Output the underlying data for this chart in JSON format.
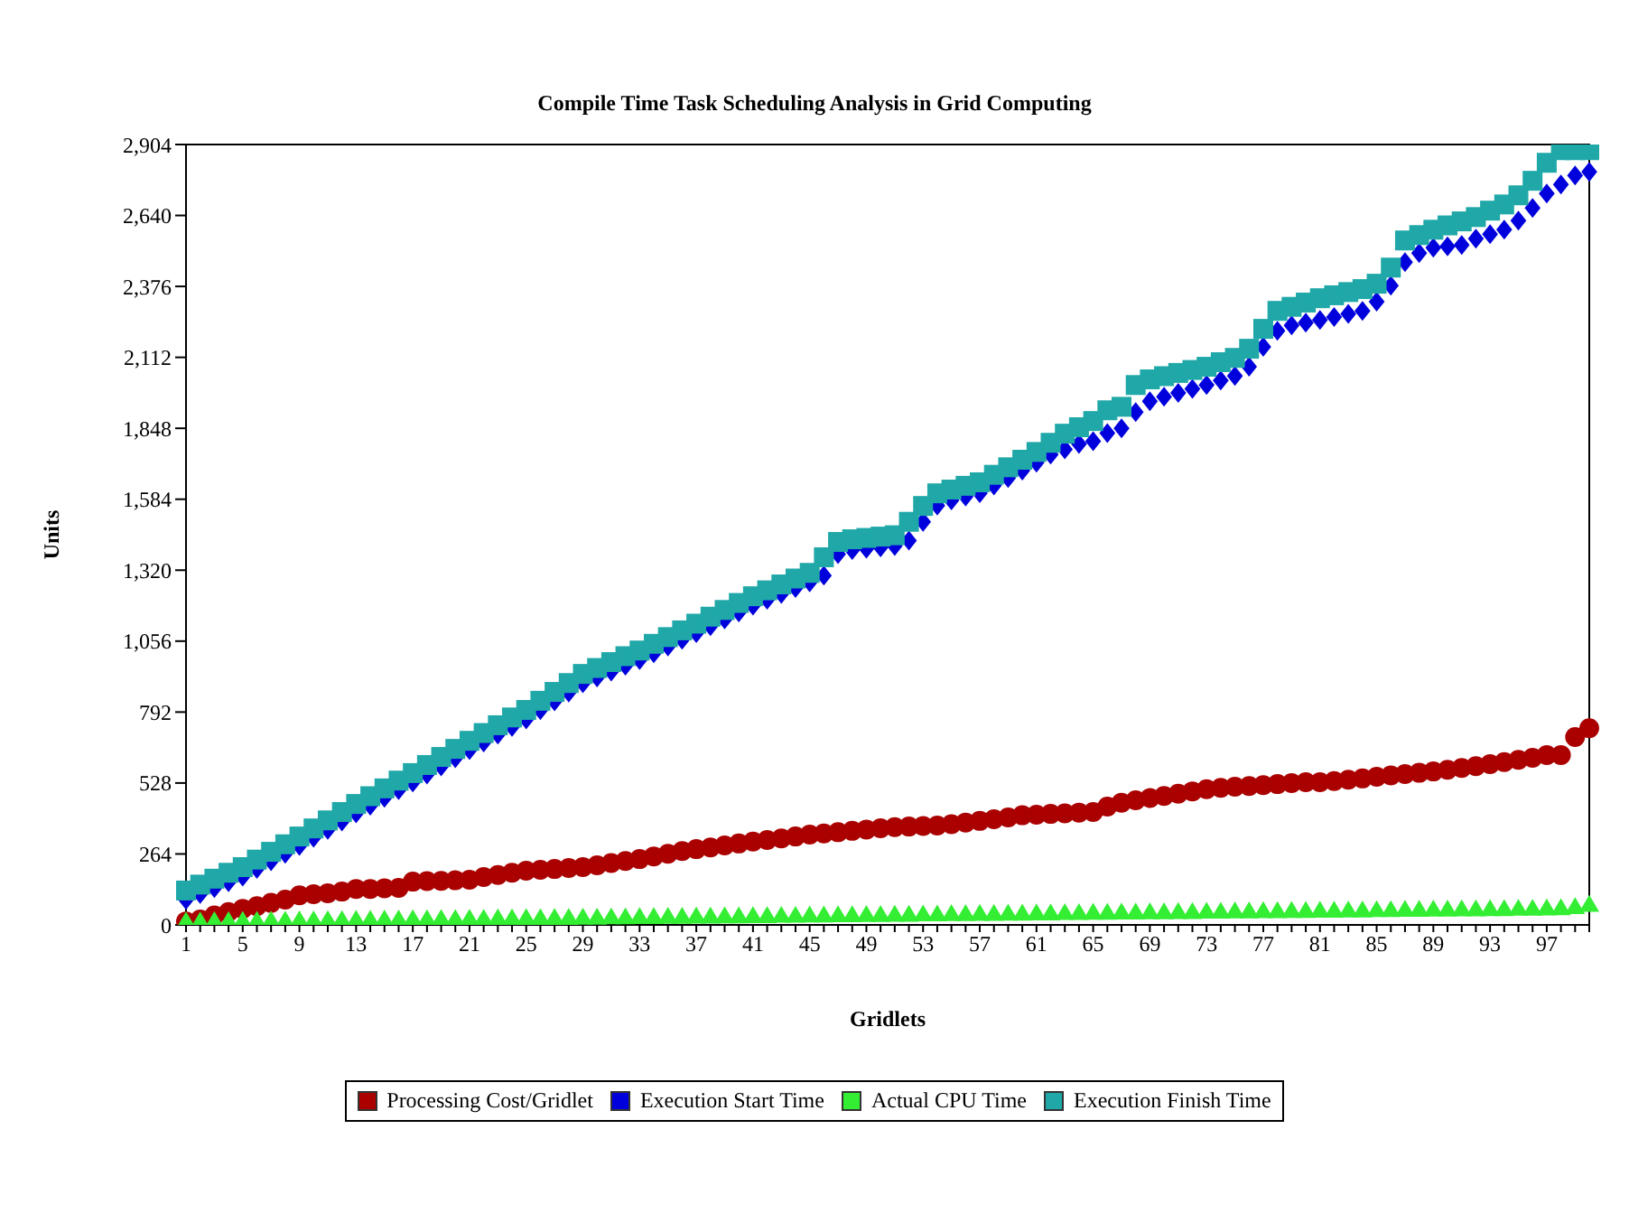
{
  "chart_data": {
    "type": "scatter",
    "title": "Compile Time Task Scheduling Analysis in Grid Computing",
    "xlabel": "Gridlets",
    "ylabel": "Units",
    "categories": [
      "1",
      null,
      null,
      null,
      "5",
      null,
      null,
      null,
      "9",
      null,
      null,
      null,
      "13",
      null,
      null,
      null,
      "17",
      null,
      null,
      null,
      "21",
      null,
      null,
      null,
      "25",
      null,
      null,
      null,
      "29",
      null,
      null,
      null,
      "33",
      null,
      null,
      null,
      "37",
      null,
      null,
      null,
      "41",
      null,
      null,
      null,
      "45",
      null,
      null,
      null,
      "49",
      null,
      null,
      null,
      "53",
      null,
      null,
      null,
      "57",
      null,
      null,
      null,
      "61",
      null,
      null,
      null,
      "65",
      null,
      null,
      null,
      "69",
      null,
      null,
      null,
      "73",
      null,
      null,
      null,
      "77",
      null,
      null,
      null,
      "81",
      null,
      null,
      null,
      "85",
      null,
      null,
      null,
      "89",
      null,
      null,
      null,
      "93",
      null,
      null,
      null,
      "97",
      null,
      null,
      null
    ],
    "ylim": [
      0,
      2904
    ],
    "yticks": [
      0,
      264,
      528,
      792,
      {
        "value": 1056,
        "label": "1,056"
      },
      {
        "value": 1320,
        "label": "1,320"
      },
      {
        "value": 1584,
        "label": "1,584"
      },
      {
        "value": 1848,
        "label": "1,848"
      },
      {
        "value": 2112,
        "label": "2,112"
      },
      {
        "value": 2376,
        "label": "2,376"
      },
      {
        "value": 2640,
        "label": "2,640"
      },
      {
        "value": 2904,
        "label": "2,904"
      }
    ],
    "grid": false,
    "legend": "bottom",
    "series": [
      {
        "name": "Processing Cost/Gridlet",
        "color": "#aa0000",
        "marker": "circle",
        "values": [
          13,
          20,
          35,
          48,
          60,
          70,
          82,
          94,
          110,
          114,
          118,
          124,
          134,
          134,
          136,
          138,
          161,
          163,
          164,
          166,
          168,
          178,
          186,
          194,
          202,
          205,
          208,
          212,
          215,
          222,
          230,
          238,
          245,
          255,
          265,
          275,
          282,
          288,
          296,
          303,
          310,
          316,
          322,
          329,
          336,
          340,
          345,
          350,
          355,
          360,
          364,
          366,
          368,
          370,
          375,
          381,
          387,
          393,
          400,
          408,
          410,
          413,
          415,
          418,
          420,
          440,
          455,
          464,
          472,
          480,
          488,
          497,
          505,
          510,
          514,
          517,
          520,
          524,
          528,
          531,
          531,
          535,
          540,
          545,
          551,
          556,
          561,
          566,
          571,
          577,
          584,
          591,
          598,
          606,
          614,
          622,
          632,
          632,
          699,
          732
        ]
      },
      {
        "name": "Execution Start Time",
        "color": "#0000dd",
        "marker": "diamond",
        "values": [
          93,
          115,
          137,
          159,
          180,
          208,
          237,
          265,
          294,
          324,
          354,
          385,
          415,
          444,
          473,
          502,
          530,
          560,
          590,
          620,
          650,
          679,
          708,
          737,
          765,
          799,
          832,
          865,
          899,
          921,
          943,
          965,
          986,
          1011,
          1036,
          1061,
          1086,
          1112,
          1137,
          1163,
          1188,
          1210,
          1232,
          1254,
          1275,
          1300,
          1380,
          1395,
          1400,
          1405,
          1410,
          1430,
          1500,
          1560,
          1580,
          1594,
          1607,
          1635,
          1663,
          1691,
          1720,
          1750,
          1770,
          1790,
          1800,
          1830,
          1848,
          1908,
          1949,
          1965,
          1980,
          1995,
          2009,
          2026,
          2043,
          2077,
          2151,
          2211,
          2231,
          2241,
          2251,
          2262,
          2274,
          2285,
          2319,
          2379,
          2466,
          2500,
          2520,
          2525,
          2530,
          2554,
          2570,
          2587,
          2621,
          2668,
          2722,
          2755,
          2789,
          2802
        ]
      },
      {
        "name": "Actual CPU Time",
        "color": "#33ee33",
        "marker": "triangle",
        "values": [
          13,
          13,
          14,
          14,
          15,
          15,
          16,
          16,
          17,
          17,
          18,
          18,
          19,
          19,
          20,
          20,
          21,
          21,
          22,
          22,
          23,
          23,
          24,
          24,
          25,
          25,
          26,
          26,
          27,
          27,
          28,
          28,
          29,
          29,
          30,
          30,
          31,
          31,
          32,
          32,
          33,
          33,
          34,
          34,
          35,
          35,
          36,
          36,
          37,
          37,
          38,
          38,
          39,
          39,
          40,
          40,
          41,
          41,
          42,
          42,
          43,
          43,
          44,
          44,
          45,
          45,
          46,
          46,
          47,
          47,
          48,
          48,
          49,
          49,
          50,
          50,
          51,
          51,
          52,
          52,
          53,
          53,
          54,
          54,
          55,
          55,
          56,
          56,
          57,
          57,
          58,
          58,
          59,
          59,
          60,
          60,
          61,
          62,
          66,
          75
        ]
      },
      {
        "name": "Execution Finish Time",
        "color": "#20a8a8",
        "marker": "square",
        "values": [
          128,
          150,
          172,
          194,
          215,
          243,
          272,
          300,
          329,
          359,
          389,
          420,
          450,
          479,
          508,
          537,
          565,
          595,
          625,
          655,
          685,
          714,
          743,
          772,
          800,
          834,
          867,
          900,
          934,
          956,
          978,
          1000,
          1021,
          1046,
          1071,
          1096,
          1121,
          1147,
          1172,
          1198,
          1223,
          1245,
          1267,
          1289,
          1310,
          1368,
          1425,
          1435,
          1440,
          1445,
          1450,
          1500,
          1559,
          1606,
          1620,
          1634,
          1647,
          1675,
          1703,
          1731,
          1760,
          1794,
          1828,
          1852,
          1875,
          1915,
          1928,
          2009,
          2030,
          2042,
          2054,
          2065,
          2077,
          2094,
          2110,
          2144,
          2218,
          2285,
          2300,
          2316,
          2332,
          2343,
          2355,
          2366,
          2386,
          2446,
          2547,
          2567,
          2587,
          2603,
          2618,
          2634,
          2658,
          2681,
          2715,
          2769,
          2836,
          2883,
          2883,
          2883
        ]
      }
    ]
  }
}
